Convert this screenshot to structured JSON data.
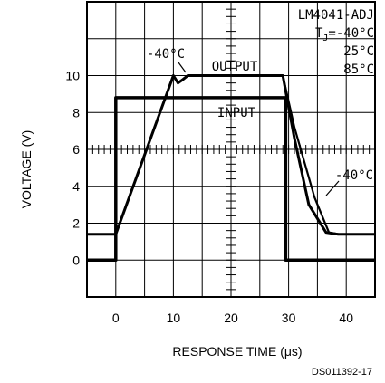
{
  "chart_data": {
    "type": "line",
    "xlabel": "RESPONSE TIME",
    "xlabel_unit": "(μs)",
    "ylabel": "VOLTAGE (V)",
    "xlim": [
      -5,
      45
    ],
    "ylim": [
      -2,
      14
    ],
    "x_ticks": [
      0,
      10,
      20,
      30,
      40
    ],
    "y_ticks": [
      0,
      2,
      4,
      6,
      8,
      10
    ],
    "x_tick_labels": [
      "0",
      "10",
      "20",
      "30",
      "40"
    ],
    "y_tick_labels": [
      "0",
      "2",
      "4",
      "6",
      "8",
      "10"
    ],
    "grid": true,
    "legend": {
      "part": "LM4041-ADJ",
      "tj_prefix": "T",
      "tj_sub": "J",
      "tj_first": "=-40°C",
      "temps_rest": [
        "25°C",
        "85°C"
      ]
    },
    "annotations": {
      "output": "OUTPUT",
      "input": "INPUT",
      "temp_rise": "-40°C",
      "temp_fall": "-40°C"
    },
    "series": [
      {
        "name": "INPUT",
        "points": [
          [
            -5,
            0
          ],
          [
            0,
            0
          ],
          [
            0,
            8.8
          ],
          [
            29.5,
            8.8
          ],
          [
            29.5,
            0
          ],
          [
            45,
            0
          ]
        ]
      },
      {
        "name": "OUTPUT",
        "points": [
          [
            -5,
            1.4
          ],
          [
            0,
            1.4
          ],
          [
            10,
            10
          ],
          [
            10.8,
            9.6
          ],
          [
            11.7,
            9.8
          ],
          [
            12.5,
            10
          ],
          [
            29,
            10
          ],
          [
            31,
            6.6
          ],
          [
            33.5,
            3
          ],
          [
            36.5,
            1.5
          ],
          [
            38.5,
            1.4
          ],
          [
            45,
            1.4
          ]
        ]
      },
      {
        "name": "OUTPUT -40°C",
        "points": [
          [
            29,
            10
          ],
          [
            31,
            7.2
          ],
          [
            34.5,
            3.4
          ],
          [
            37,
            1.5
          ],
          [
            38.8,
            1.4
          ],
          [
            45,
            1.4
          ]
        ]
      }
    ]
  },
  "footer": {
    "doc_id": "DS011392-17"
  }
}
